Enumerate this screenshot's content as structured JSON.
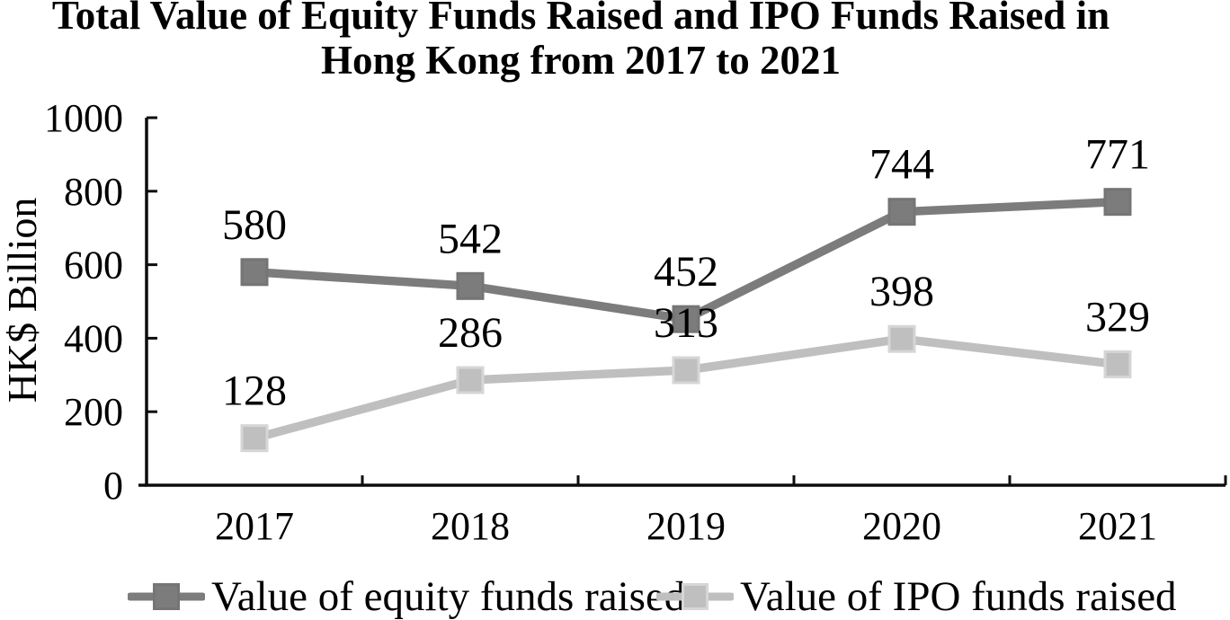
{
  "title": {
    "line1": "Total Value of Equity Funds Raised and IPO Funds Raised in",
    "line2": "Hong Kong from 2017 to 2021"
  },
  "chart_data": {
    "type": "line",
    "title": "Total Value of Equity Funds Raised and IPO Funds Raised in Hong Kong from 2017 to 2021",
    "categories": [
      "2017",
      "2018",
      "2019",
      "2020",
      "2021"
    ],
    "series": [
      {
        "name": "Value of equity funds raised",
        "values": [
          580,
          542,
          452,
          744,
          771
        ],
        "color": "#7c7c7c",
        "marker_border": "#757575"
      },
      {
        "name": "Value of IPO funds raised",
        "values": [
          128,
          286,
          313,
          398,
          329
        ],
        "color": "#bfbfbf",
        "marker_border": "#d6d6d6"
      }
    ],
    "xlabel": "",
    "ylabel": "HK$ Billion",
    "ylim": [
      0,
      1000
    ],
    "yticks": [
      0,
      200,
      400,
      600,
      800,
      1000
    ],
    "grid": false,
    "data_labels": true,
    "legend_position": "bottom",
    "axis_color": "#0d0d0d",
    "text_color": "#000000",
    "marker_shape": "square"
  }
}
